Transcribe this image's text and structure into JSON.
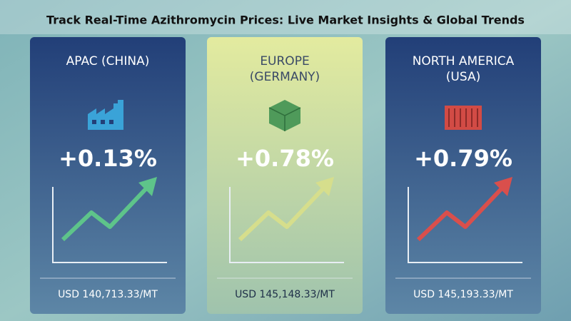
{
  "header": {
    "title": "Track Real-Time Azithromycin Prices: Live Market Insights & Global Trends"
  },
  "cards": [
    {
      "region": [
        "APAC (CHINA)"
      ],
      "change": "+0.13%",
      "price": "USD 140,713.33/MT"
    },
    {
      "region": [
        "EUROPE",
        "(GERMANY)"
      ],
      "change": "+0.78%",
      "price": "USD 145,148.33/MT"
    },
    {
      "region": [
        "NORTH AMERICA",
        "(USA)"
      ],
      "change": "+0.79%",
      "price": "USD 145,193.33/MT"
    }
  ]
}
